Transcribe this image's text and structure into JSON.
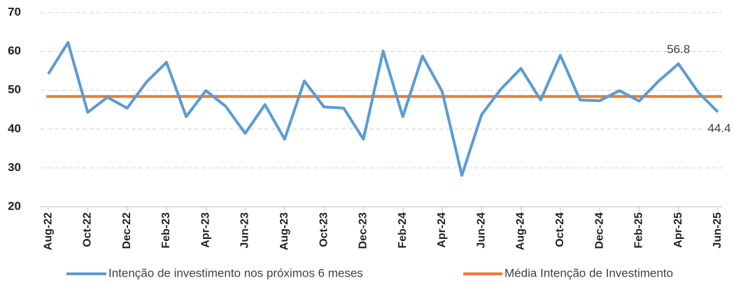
{
  "chart_data": {
    "type": "line",
    "categories": [
      "Aug-22",
      null,
      "Oct-22",
      null,
      "Dec-22",
      null,
      "Feb-23",
      null,
      "Apr-23",
      null,
      "Jun-23",
      null,
      "Aug-23",
      null,
      "Oct-23",
      null,
      "Dec-23",
      null,
      "Feb-24",
      null,
      "Apr-24",
      null,
      "Jun-24",
      null,
      "Aug-24",
      null,
      "Oct-24",
      null,
      "Dec-24",
      null,
      "Feb-25",
      null,
      "Apr-25",
      null,
      "Jun-25"
    ],
    "series": [
      {
        "name": "Intenção de investimento nos próximos 6 meses",
        "color": "#5b9bd5",
        "values": [
          54.2,
          62.3,
          44.3,
          48.2,
          45.4,
          52.2,
          57.2,
          43.2,
          49.9,
          45.9,
          38.9,
          46.3,
          37.4,
          52.4,
          45.7,
          45.4,
          37.4,
          60.1,
          43.2,
          58.8,
          49.7,
          28.1,
          43.7,
          50.4,
          55.6,
          47.5,
          59.0,
          47.5,
          47.3,
          49.9,
          47.2,
          52.4,
          56.8,
          49.5,
          44.4
        ],
        "value_labels": [
          null,
          null,
          null,
          null,
          null,
          null,
          null,
          null,
          null,
          null,
          null,
          null,
          null,
          null,
          null,
          null,
          null,
          null,
          null,
          null,
          null,
          null,
          null,
          null,
          null,
          null,
          null,
          null,
          null,
          null,
          null,
          null,
          "56.8",
          null,
          "44.4"
        ]
      }
    ],
    "mean_line": {
      "name": "Média Intenção de Investimento",
      "color": "#ed7d31",
      "value": 48.4
    },
    "ylim": [
      20,
      70
    ],
    "yticks": [
      20,
      30,
      40,
      50,
      60,
      70
    ],
    "grid": true
  }
}
